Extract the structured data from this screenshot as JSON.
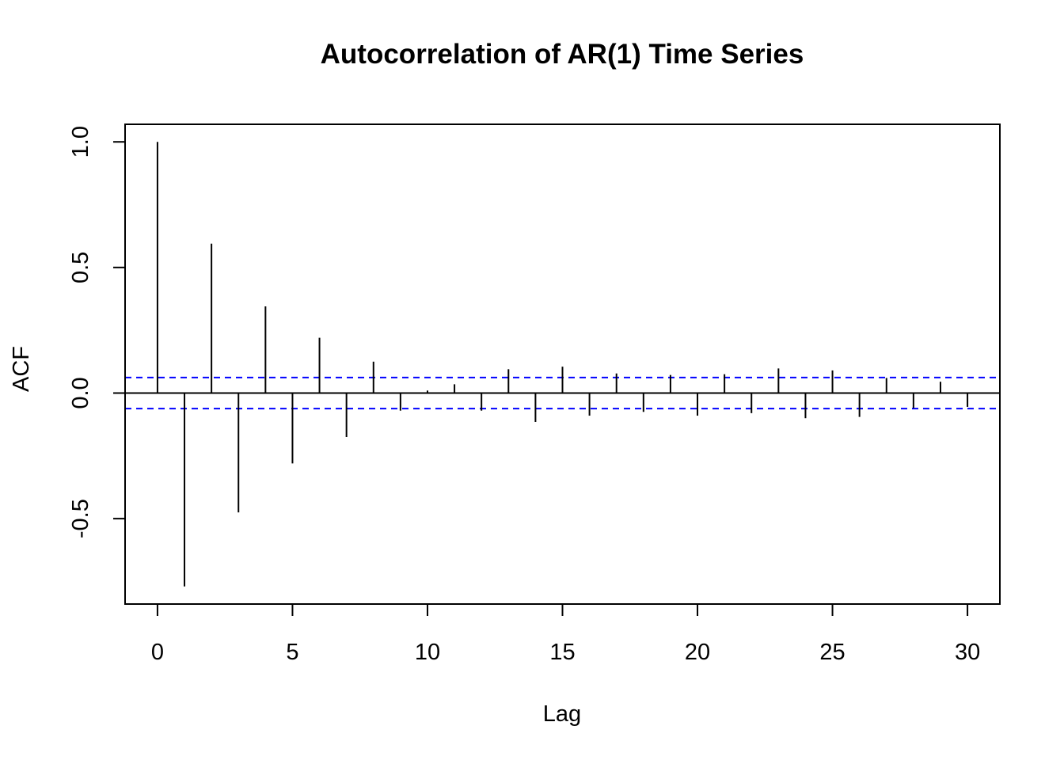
{
  "chart_data": {
    "type": "bar",
    "title": "Autocorrelation of AR(1) Time Series",
    "xlabel": "Lag",
    "ylabel": "ACF",
    "xlim": [
      -1.2,
      31.2
    ],
    "ylim": [
      -0.84,
      1.07
    ],
    "x_ticks": [
      0,
      5,
      10,
      15,
      20,
      25,
      30
    ],
    "y_ticks": [
      -0.5,
      0.0,
      0.5,
      1.0
    ],
    "x_tick_labels": [
      "0",
      "5",
      "10",
      "15",
      "20",
      "25",
      "30"
    ],
    "y_tick_labels": [
      "-0.5",
      "0.0",
      "0.5",
      "1.0"
    ],
    "lags": [
      0,
      1,
      2,
      3,
      4,
      5,
      6,
      7,
      8,
      9,
      10,
      11,
      12,
      13,
      14,
      15,
      16,
      17,
      18,
      19,
      20,
      21,
      22,
      23,
      24,
      25,
      26,
      27,
      28,
      29,
      30
    ],
    "acf": [
      1.0,
      -0.77,
      0.595,
      -0.475,
      0.345,
      -0.28,
      0.22,
      -0.175,
      0.125,
      -0.07,
      0.01,
      0.035,
      -0.07,
      0.095,
      -0.115,
      0.105,
      -0.09,
      0.078,
      -0.075,
      0.072,
      -0.09,
      0.075,
      -0.08,
      0.098,
      -0.1,
      0.09,
      -0.095,
      0.06,
      -0.06,
      0.045,
      -0.055
    ],
    "confidence_bound": 0.062,
    "grid": false,
    "colors": {
      "bars": "#000000",
      "confidence_lines": "#0000ff",
      "zero_line": "#000000"
    }
  }
}
